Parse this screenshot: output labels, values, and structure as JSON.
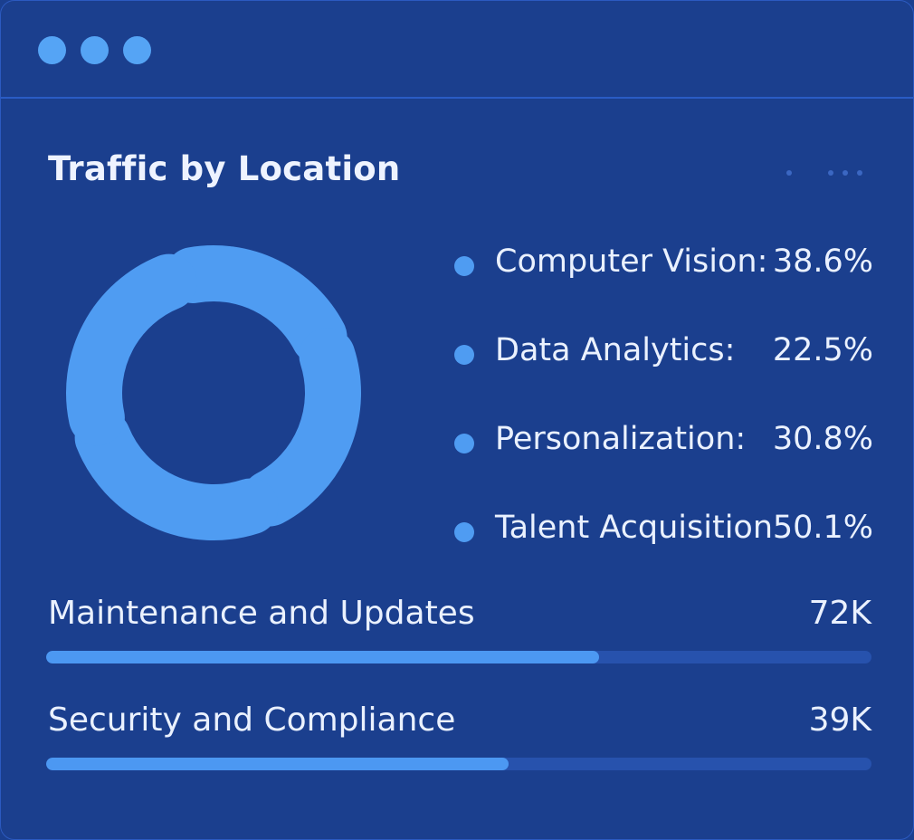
{
  "window": {
    "controls": [
      "dot",
      "dot",
      "dot"
    ]
  },
  "card": {
    "title": "Traffic by Location",
    "menu_icon": "ellipsis-icon"
  },
  "donut": {
    "segments": 4,
    "color": "#4f9cf2"
  },
  "legend": [
    {
      "label": "Computer Vision:",
      "value": "38.6%"
    },
    {
      "label": "Data Analytics:",
      "value": "22.5%"
    },
    {
      "label": "Personalization:",
      "value": "30.8%"
    },
    {
      "label": "Talent Acquisition",
      "value": "50.1%"
    }
  ],
  "metrics": [
    {
      "label": "Maintenance and Updates",
      "value": "72K",
      "progress": 0.67
    },
    {
      "label": "Security and Compliance",
      "value": "39K",
      "progress": 0.56
    }
  ],
  "colors": {
    "background": "#1b3f8e",
    "accent": "#4f9cf2",
    "track": "#2752ad",
    "text": "#eaf1ff"
  }
}
